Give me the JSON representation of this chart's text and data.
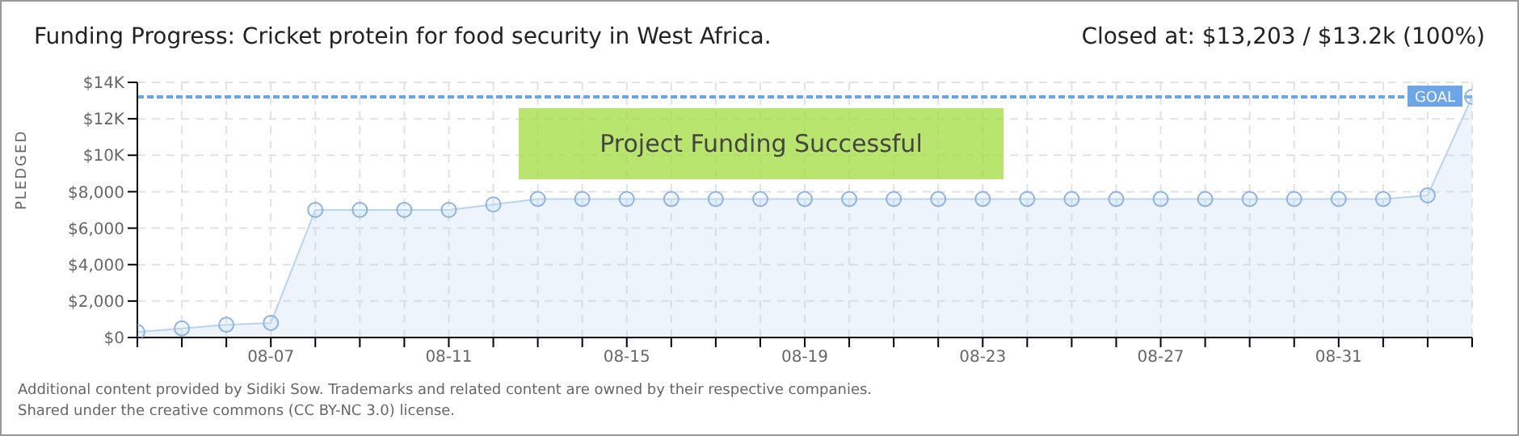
{
  "chart_data": {
    "type": "area",
    "title": "Funding Progress: Cricket protein for food security in West Africa.",
    "subtitle": "Closed at:  $13,203 /  $13.2k (100%)",
    "ylabel": "PLEDGED",
    "categories": [
      null,
      null,
      null,
      "08-07",
      null,
      null,
      null,
      "08-11",
      null,
      null,
      null,
      "08-15",
      null,
      null,
      null,
      "08-19",
      null,
      null,
      null,
      "08-23",
      null,
      null,
      null,
      "08-27",
      null,
      null,
      null,
      "08-31",
      null,
      null,
      null
    ],
    "values": [
      300,
      500,
      700,
      800,
      7000,
      7000,
      7000,
      7000,
      7300,
      7600,
      7600,
      7600,
      7600,
      7600,
      7600,
      7600,
      7600,
      7600,
      7600,
      7600,
      7600,
      7600,
      7600,
      7600,
      7600,
      7600,
      7600,
      7600,
      7600,
      7800,
      13203
    ],
    "color": "#b8d4f4",
    "marker": "circle",
    "grid": true,
    "ylim": [
      0,
      14000
    ],
    "yticks": [
      {
        "value": 0,
        "label": "$0"
      },
      {
        "value": 2000,
        "label": "$2,000"
      },
      {
        "value": 4000,
        "label": "$4,000"
      },
      {
        "value": 6000,
        "label": "$6,000"
      },
      {
        "value": 8000,
        "label": "$8,000"
      },
      {
        "value": 10000,
        "label": "$10K"
      },
      {
        "value": 12000,
        "label": "$12K"
      },
      {
        "value": 14000,
        "label": "$14K"
      }
    ],
    "ref_lines": [
      {
        "axis": "y",
        "value": 13200,
        "label": "GOAL",
        "color": "#6aa6e8",
        "line_style": "dashed"
      }
    ],
    "annotations": [
      "Project Funding Successful",
      "Additional content provided by Sidiki Sow. Trademarks and related content are owned by their respective companies.",
      "Shared under the creative commons (CC BY-NC 3.0) license."
    ]
  }
}
